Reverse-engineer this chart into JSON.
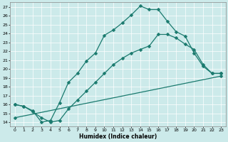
{
  "xlabel": "Humidex (Indice chaleur)",
  "bg_color": "#cceaea",
  "grid_color": "#ffffff",
  "line_color": "#1a7a6e",
  "xlim": [
    -0.5,
    23.5
  ],
  "ylim": [
    13.5,
    27.5
  ],
  "yticks": [
    14,
    15,
    16,
    17,
    18,
    19,
    20,
    21,
    22,
    23,
    24,
    25,
    26,
    27
  ],
  "xticks": [
    0,
    1,
    2,
    3,
    4,
    5,
    6,
    7,
    8,
    9,
    10,
    11,
    12,
    13,
    14,
    15,
    16,
    17,
    18,
    19,
    20,
    21,
    22,
    23
  ],
  "line1_x": [
    0,
    1,
    2,
    3,
    4,
    5,
    6,
    7,
    8,
    9,
    10,
    11,
    12,
    13,
    14,
    15,
    16,
    17,
    18,
    19,
    20,
    21,
    22,
    23
  ],
  "line1_y": [
    16.0,
    15.8,
    15.3,
    14.0,
    14.2,
    16.2,
    18.5,
    19.5,
    20.9,
    21.8,
    23.8,
    24.4,
    25.2,
    26.1,
    27.1,
    26.7,
    26.7,
    25.4,
    24.2,
    23.7,
    21.8,
    20.3,
    19.5,
    19.5
  ],
  "line2_x": [
    0,
    1,
    2,
    3,
    4,
    5,
    6,
    7,
    8,
    9,
    10,
    11,
    12,
    13,
    14,
    15,
    16,
    17,
    18,
    19,
    20,
    21,
    22,
    23
  ],
  "line2_y": [
    16.0,
    15.8,
    15.2,
    14.5,
    14.0,
    14.2,
    15.5,
    16.5,
    17.5,
    18.5,
    19.5,
    20.5,
    21.2,
    21.8,
    22.2,
    22.6,
    23.9,
    23.9,
    23.5,
    22.8,
    22.2,
    20.5,
    19.5,
    19.5
  ],
  "line3_x": [
    0,
    23
  ],
  "line3_y": [
    14.5,
    19.2
  ]
}
